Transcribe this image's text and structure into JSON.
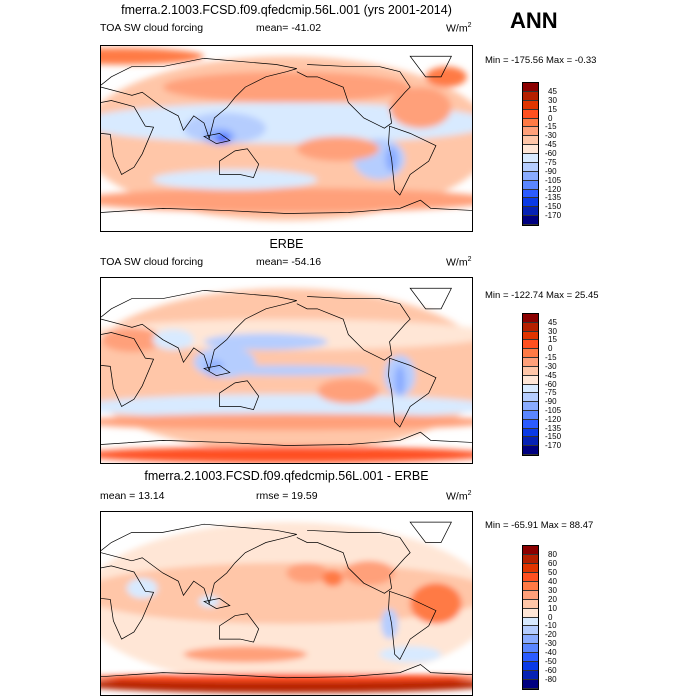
{
  "season": "ANN",
  "panels": [
    {
      "title": "fmerra.2.1003.FCSD.f09.qfedcmip.56L.001 (yrs 2001-2014)",
      "left_label": "TOA SW cloud forcing",
      "center_label": "mean= -41.02",
      "units": "W/m",
      "units_sup": "2",
      "minmax": "Min = -175.56 Max =  -0.33",
      "levels": [
        "45",
        "30",
        "15",
        "0",
        "-15",
        "-30",
        "-45",
        "-60",
        "-75",
        "-90",
        "-105",
        "-120",
        "-135",
        "-150",
        "-170"
      ]
    },
    {
      "title": "ERBE",
      "left_label": "TOA SW cloud forcing",
      "center_label": "mean= -54.16",
      "units": "W/m",
      "units_sup": "2",
      "minmax": "Min = -122.74 Max =  25.45",
      "levels": [
        "45",
        "30",
        "15",
        "0",
        "-15",
        "-30",
        "-45",
        "-60",
        "-75",
        "-90",
        "-105",
        "-120",
        "-135",
        "-150",
        "-170"
      ]
    },
    {
      "title": "fmerra.2.1003.FCSD.f09.qfedcmip.56L.001 - ERBE",
      "left_label": "mean =  13.14",
      "center_label": "rmse =  19.59",
      "units": "W/m",
      "units_sup": "2",
      "minmax": "Min = -65.91 Max =  88.47",
      "levels": [
        "80",
        "60",
        "50",
        "40",
        "30",
        "20",
        "10",
        "0",
        "-10",
        "-20",
        "-30",
        "-40",
        "-50",
        "-60",
        "-80"
      ]
    }
  ],
  "colormap": [
    "#8b0000",
    "#b52000",
    "#e03500",
    "#ff5020",
    "#ff7a45",
    "#ffa07a",
    "#ffc6a8",
    "#ffe6d6",
    "#d8eaff",
    "#b5cdfe",
    "#8aacff",
    "#5a86ff",
    "#2c5cff",
    "#0a3ae6",
    "#0622b4",
    "#000080"
  ]
}
